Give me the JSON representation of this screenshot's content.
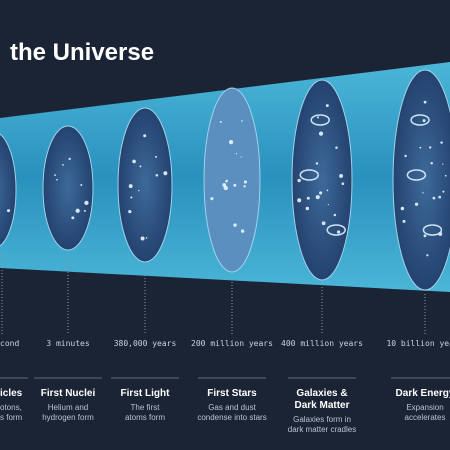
{
  "title": "the Universe",
  "stages": [
    {
      "time": "cond",
      "label": [
        "icles"
      ],
      "description": [
        "otons,",
        "s form"
      ]
    },
    {
      "time": "3 minutes",
      "label": [
        "First Nuclei"
      ],
      "description": [
        "Helium and",
        "hydrogen form"
      ]
    },
    {
      "time": "380,000 years",
      "label": [
        "First Light"
      ],
      "description": [
        "The first",
        "atoms form"
      ]
    },
    {
      "time": "200 million years",
      "label": [
        "First Stars"
      ],
      "description": [
        "Gas and dust",
        "condense into stars"
      ]
    },
    {
      "time": "400 million years",
      "label": [
        "Galaxies &",
        "Dark Matter"
      ],
      "description": [
        "Galaxies form in",
        "dark matter cradles"
      ]
    },
    {
      "time": "10 billion years",
      "label": [
        "Dark Energy"
      ],
      "description": [
        "Expansion",
        "accelerates"
      ]
    }
  ]
}
